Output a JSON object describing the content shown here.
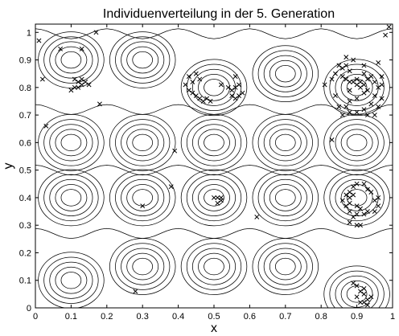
{
  "chart_data": {
    "type": "scatter",
    "title": "Individuenverteilung in der 5. Generation",
    "xlabel": "x",
    "ylabel": "y",
    "xlim": [
      0,
      1
    ],
    "ylim": [
      0,
      1.03
    ],
    "xticks": [
      "0",
      "0.1",
      "0.2",
      "0.3",
      "0.4",
      "0.5",
      "0.6",
      "0.7",
      "0.8",
      "0.9",
      "1"
    ],
    "yticks": [
      "0",
      "0.1",
      "0.2",
      "0.3",
      "0.4",
      "0.5",
      "0.6",
      "0.7",
      "0.8",
      "0.9",
      "1"
    ],
    "marker": "x",
    "background": "contour lines of the fitness landscape",
    "grid": false,
    "colors": {
      "ink": "#000000",
      "background": "#ffffff"
    },
    "series": [
      {
        "points": [
          [
            0.01,
            0.97
          ],
          [
            0.07,
            0.94
          ],
          [
            0.13,
            0.94
          ],
          [
            0.17,
            1.0
          ],
          [
            0.11,
            0.83
          ],
          [
            0.12,
            0.82
          ],
          [
            0.13,
            0.83
          ],
          [
            0.14,
            0.82
          ],
          [
            0.13,
            0.81
          ],
          [
            0.12,
            0.8
          ],
          [
            0.11,
            0.8
          ],
          [
            0.15,
            0.81
          ],
          [
            0.1,
            0.79
          ],
          [
            0.18,
            0.74
          ],
          [
            0.03,
            0.66
          ],
          [
            0.42,
            0.81
          ],
          [
            0.43,
            0.79
          ],
          [
            0.44,
            0.78
          ],
          [
            0.45,
            0.77
          ],
          [
            0.46,
            0.76
          ],
          [
            0.47,
            0.75
          ],
          [
            0.48,
            0.76
          ],
          [
            0.49,
            0.75
          ],
          [
            0.45,
            0.85
          ],
          [
            0.46,
            0.83
          ],
          [
            0.44,
            0.82
          ],
          [
            0.43,
            0.84
          ],
          [
            0.52,
            0.81
          ],
          [
            0.54,
            0.8
          ],
          [
            0.55,
            0.79
          ],
          [
            0.56,
            0.8
          ],
          [
            0.55,
            0.77
          ],
          [
            0.56,
            0.76
          ],
          [
            0.57,
            0.77
          ],
          [
            0.56,
            0.84
          ],
          [
            0.57,
            0.81
          ],
          [
            0.58,
            0.78
          ],
          [
            0.39,
            0.57
          ],
          [
            0.38,
            0.44
          ],
          [
            0.3,
            0.37
          ],
          [
            0.5,
            0.4
          ],
          [
            0.51,
            0.4
          ],
          [
            0.52,
            0.39
          ],
          [
            0.51,
            0.38
          ],
          [
            0.52,
            0.4
          ],
          [
            0.62,
            0.33
          ],
          [
            0.28,
            0.06
          ],
          [
            0.83,
            0.61
          ],
          [
            0.02,
            0.83
          ],
          [
            0.81,
            0.81
          ],
          [
            0.83,
            0.83
          ],
          [
            0.84,
            0.85
          ],
          [
            0.85,
            0.88
          ],
          [
            0.86,
            0.87
          ],
          [
            0.87,
            0.88
          ],
          [
            0.88,
            0.86
          ],
          [
            0.86,
            0.84
          ],
          [
            0.87,
            0.83
          ],
          [
            0.88,
            0.82
          ],
          [
            0.89,
            0.82
          ],
          [
            0.9,
            0.83
          ],
          [
            0.91,
            0.82
          ],
          [
            0.9,
            0.81
          ],
          [
            0.91,
            0.8
          ],
          [
            0.92,
            0.81
          ],
          [
            0.93,
            0.83
          ],
          [
            0.94,
            0.84
          ],
          [
            0.95,
            0.82
          ],
          [
            0.96,
            0.8
          ],
          [
            0.93,
            0.79
          ],
          [
            0.92,
            0.78
          ],
          [
            0.9,
            0.76
          ],
          [
            0.88,
            0.75
          ],
          [
            0.87,
            0.73
          ],
          [
            0.88,
            0.71
          ],
          [
            0.9,
            0.71
          ],
          [
            0.92,
            0.72
          ],
          [
            0.94,
            0.74
          ],
          [
            0.95,
            0.77
          ],
          [
            0.97,
            0.76
          ],
          [
            0.96,
            0.73
          ],
          [
            0.93,
            0.7
          ],
          [
            0.95,
            0.7
          ],
          [
            0.97,
            0.84
          ],
          [
            0.96,
            0.89
          ],
          [
            0.92,
            0.88
          ],
          [
            0.89,
            0.9
          ],
          [
            0.87,
            0.91
          ],
          [
            0.98,
            0.99
          ],
          [
            0.99,
            1.02
          ],
          [
            0.84,
            0.77
          ],
          [
            0.85,
            0.73
          ],
          [
            0.86,
            0.7
          ],
          [
            0.97,
            0.81
          ],
          [
            0.88,
            0.79
          ],
          [
            0.92,
            0.85
          ],
          [
            0.87,
            0.41
          ],
          [
            0.88,
            0.4
          ],
          [
            0.89,
            0.41
          ],
          [
            0.88,
            0.38
          ],
          [
            0.87,
            0.37
          ],
          [
            0.88,
            0.35
          ],
          [
            0.9,
            0.34
          ],
          [
            0.89,
            0.33
          ],
          [
            0.88,
            0.31
          ],
          [
            0.9,
            0.3
          ],
          [
            0.91,
            0.3
          ],
          [
            0.88,
            0.42
          ],
          [
            0.89,
            0.44
          ],
          [
            0.9,
            0.45
          ],
          [
            0.92,
            0.45
          ],
          [
            0.93,
            0.43
          ],
          [
            0.94,
            0.42
          ],
          [
            0.95,
            0.39
          ],
          [
            0.96,
            0.37
          ],
          [
            0.95,
            0.35
          ],
          [
            0.93,
            0.35
          ],
          [
            0.92,
            0.34
          ],
          [
            0.96,
            0.4
          ],
          [
            0.9,
            0.37
          ],
          [
            0.91,
            0.36
          ],
          [
            0.86,
            0.39
          ],
          [
            0.89,
            0.09
          ],
          [
            0.9,
            0.08
          ],
          [
            0.91,
            0.06
          ],
          [
            0.92,
            0.05
          ],
          [
            0.93,
            0.03
          ],
          [
            0.92,
            0.02
          ],
          [
            0.93,
            0.01
          ],
          [
            0.94,
            0.04
          ],
          [
            0.91,
            0.02
          ],
          [
            0.9,
            0.04
          ],
          [
            0.92,
            0.07
          ]
        ]
      }
    ],
    "contour_centers": [
      [
        0.1,
        0.9
      ],
      [
        0.3,
        0.9
      ],
      [
        0.5,
        0.8
      ],
      [
        0.7,
        0.85
      ],
      [
        0.9,
        0.8
      ],
      [
        0.1,
        0.6
      ],
      [
        0.3,
        0.6
      ],
      [
        0.5,
        0.6
      ],
      [
        0.7,
        0.6
      ],
      [
        0.9,
        0.6
      ],
      [
        0.1,
        0.4
      ],
      [
        0.3,
        0.4
      ],
      [
        0.5,
        0.4
      ],
      [
        0.7,
        0.4
      ],
      [
        0.9,
        0.4
      ],
      [
        0.1,
        0.1
      ],
      [
        0.3,
        0.15
      ],
      [
        0.5,
        0.15
      ],
      [
        0.7,
        0.15
      ],
      [
        0.9,
        0.05
      ]
    ]
  }
}
